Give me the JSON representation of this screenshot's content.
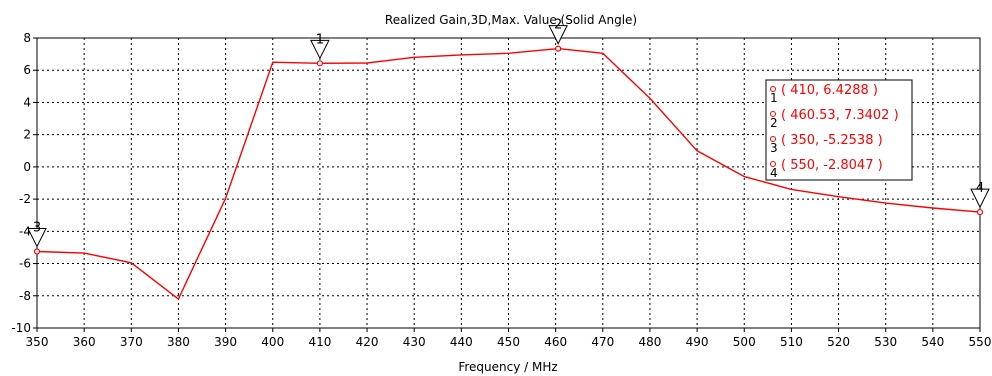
{
  "chart_data": {
    "type": "line",
    "title": "Realized Gain,3D,Max. Value (Solid Angle)",
    "xlabel": "Frequency / MHz",
    "ylabel": "",
    "xlim": [
      350,
      550
    ],
    "ylim": [
      -10,
      8
    ],
    "x_ticks": [
      "350",
      "360",
      "370",
      "380",
      "390",
      "400",
      "410",
      "420",
      "430",
      "440",
      "450",
      "460",
      "470",
      "480",
      "490",
      "500",
      "510",
      "520",
      "530",
      "540",
      "550"
    ],
    "y_ticks": [
      "8",
      "6",
      "4",
      "2",
      "0",
      "-2",
      "-4",
      "-6",
      "-8",
      "-10"
    ],
    "grid": true,
    "series": [
      {
        "x": [
          350,
          360,
          370,
          380,
          390,
          400,
          410,
          420,
          430,
          440,
          450,
          460.53,
          470,
          480,
          490,
          500,
          510,
          520,
          530,
          540,
          550
        ],
        "values": [
          -5.2538,
          -5.35,
          -5.95,
          -8.2,
          -1.95,
          6.5,
          6.4288,
          6.45,
          6.8,
          6.95,
          7.05,
          7.3402,
          7.05,
          4.25,
          1.0,
          -0.6,
          -1.4,
          -1.85,
          -2.25,
          -2.55,
          -2.8047
        ],
        "color": "#ff0000"
      }
    ],
    "markers": [
      {
        "id": "1",
        "x": 410,
        "y": 6.4288,
        "label": "( 410, 6.4288 )"
      },
      {
        "id": "2",
        "x": 460.53,
        "y": 7.3402,
        "label": "( 460.53, 7.3402 )"
      },
      {
        "id": "3",
        "x": 350,
        "y": -5.2538,
        "label": "( 350, -5.2538 )"
      },
      {
        "id": "4",
        "x": 550,
        "y": -2.8047,
        "label": "( 550, -2.8047 )"
      }
    ],
    "legend_position": "right"
  }
}
